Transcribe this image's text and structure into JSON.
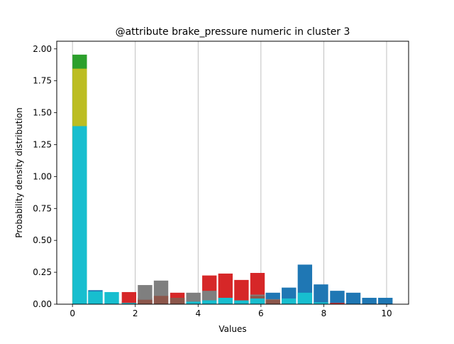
{
  "chart_data": {
    "type": "bar",
    "title": "@attribute brake_pressure numeric in cluster  3",
    "xlabel": "Values",
    "ylabel": "Probability density distribution",
    "xlim": [
      -0.5,
      10.7
    ],
    "ylim": [
      0,
      2.06
    ],
    "xticks": [
      0,
      2,
      4,
      6,
      8,
      10
    ],
    "xtick_labels": [
      "0",
      "2",
      "4",
      "6",
      "8",
      "10"
    ],
    "yticks": [
      0,
      0.25,
      0.5,
      0.75,
      1.0,
      1.25,
      1.5,
      1.75,
      2.0
    ],
    "ytick_labels": [
      "0.00",
      "0.25",
      "0.50",
      "0.75",
      "1.00",
      "1.25",
      "1.50",
      "1.75",
      "2.00"
    ],
    "grid": "vertical lines at x ticks",
    "legend": "none",
    "series": [
      {
        "color": "#1f77b4",
        "bars": [
          {
            "x": 0.5,
            "w": 0.46,
            "y": 0.11
          },
          {
            "x": 6.15,
            "w": 0.46,
            "y": 0.09
          },
          {
            "x": 6.66,
            "w": 0.46,
            "y": 0.13
          },
          {
            "x": 7.17,
            "w": 0.46,
            "y": 0.31
          },
          {
            "x": 7.68,
            "w": 0.46,
            "y": 0.155
          },
          {
            "x": 8.2,
            "w": 0.46,
            "y": 0.105
          },
          {
            "x": 8.71,
            "w": 0.46,
            "y": 0.09
          },
          {
            "x": 9.22,
            "w": 0.46,
            "y": 0.05
          },
          {
            "x": 9.73,
            "w": 0.46,
            "y": 0.05
          }
        ]
      },
      {
        "color": "#2ca02c",
        "bars": [
          {
            "x": 0.0,
            "w": 0.46,
            "y": 1.955
          },
          {
            "x": 1.57,
            "w": 0.46,
            "y": 0.02
          }
        ]
      },
      {
        "color": "#d62728",
        "bars": [
          {
            "x": 1.57,
            "w": 0.46,
            "y": 0.095
          },
          {
            "x": 2.08,
            "w": 0.46,
            "y": 0.05
          },
          {
            "x": 3.11,
            "w": 0.46,
            "y": 0.09
          },
          {
            "x": 4.13,
            "w": 0.46,
            "y": 0.225
          },
          {
            "x": 4.64,
            "w": 0.46,
            "y": 0.24
          },
          {
            "x": 5.15,
            "w": 0.46,
            "y": 0.19
          },
          {
            "x": 5.66,
            "w": 0.46,
            "y": 0.245
          },
          {
            "x": 8.2,
            "w": 0.46,
            "y": 0.01
          }
        ]
      },
      {
        "color": "#7f7f7f",
        "bars": [
          {
            "x": 2.08,
            "w": 0.46,
            "y": 0.15
          },
          {
            "x": 2.59,
            "w": 0.46,
            "y": 0.185
          },
          {
            "x": 3.11,
            "w": 0.46,
            "y": 0.05
          },
          {
            "x": 3.62,
            "w": 0.46,
            "y": 0.09
          },
          {
            "x": 4.13,
            "w": 0.46,
            "y": 0.105
          },
          {
            "x": 5.66,
            "w": 0.46,
            "y": 0.075
          },
          {
            "x": 6.15,
            "w": 0.46,
            "y": 0.04
          }
        ]
      },
      {
        "color": "#8c564b",
        "bars": [
          {
            "x": 2.08,
            "w": 0.46,
            "y": 0.035
          },
          {
            "x": 2.59,
            "w": 0.46,
            "y": 0.065
          },
          {
            "x": 3.11,
            "w": 0.46,
            "y": 0.05
          },
          {
            "x": 5.66,
            "w": 0.46,
            "y": 0.065
          },
          {
            "x": 6.15,
            "w": 0.46,
            "y": 0.035
          }
        ]
      },
      {
        "color": "#bcbd22",
        "bars": [
          {
            "x": 0.0,
            "w": 0.46,
            "y": 1.845
          }
        ]
      },
      {
        "color": "#17becf",
        "bars": [
          {
            "x": 0.0,
            "w": 0.46,
            "y": 1.395
          },
          {
            "x": 0.5,
            "w": 0.46,
            "y": 0.1
          },
          {
            "x": 1.02,
            "w": 0.46,
            "y": 0.095
          },
          {
            "x": 1.57,
            "w": 0.46,
            "y": 0.01
          },
          {
            "x": 3.62,
            "w": 0.46,
            "y": 0.02
          },
          {
            "x": 4.13,
            "w": 0.46,
            "y": 0.03
          },
          {
            "x": 4.64,
            "w": 0.46,
            "y": 0.05
          },
          {
            "x": 5.15,
            "w": 0.46,
            "y": 0.03
          },
          {
            "x": 5.66,
            "w": 0.46,
            "y": 0.045
          },
          {
            "x": 6.66,
            "w": 0.46,
            "y": 0.045
          },
          {
            "x": 7.17,
            "w": 0.46,
            "y": 0.09
          },
          {
            "x": 7.68,
            "w": 0.46,
            "y": 0.015
          }
        ]
      }
    ]
  }
}
